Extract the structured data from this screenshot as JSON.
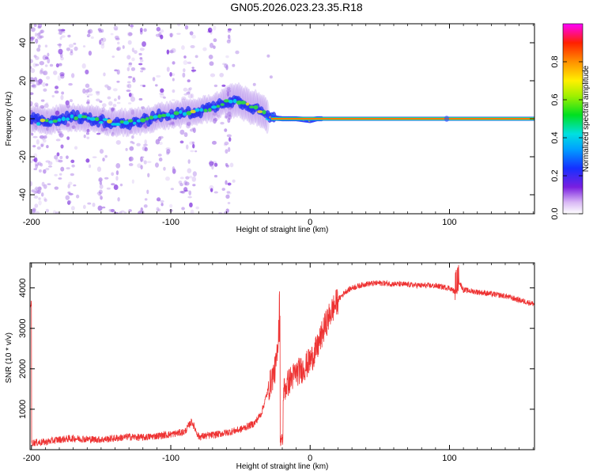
{
  "title": "GN05.2026.023.23.35.R18",
  "chart_data": [
    {
      "type": "heatmap",
      "name": "spectrogram",
      "xlabel": "Height of straight line (km)",
      "ylabel": "Frequency (Hz)",
      "xlim": [
        -201,
        161
      ],
      "ylim": [
        -50,
        50
      ],
      "xticks": [
        -200,
        -100,
        0,
        100
      ],
      "yticks": [
        -40,
        -20,
        0,
        20,
        40
      ],
      "ridge": [
        {
          "x": -195,
          "y": -2
        },
        {
          "x": -180,
          "y": 0
        },
        {
          "x": -170,
          "y": 1
        },
        {
          "x": -160,
          "y": 0
        },
        {
          "x": -150,
          "y": -1
        },
        {
          "x": -140,
          "y": -2
        },
        {
          "x": -130,
          "y": -2
        },
        {
          "x": -120,
          "y": -1
        },
        {
          "x": -110,
          "y": 1
        },
        {
          "x": -100,
          "y": 2
        },
        {
          "x": -90,
          "y": 3
        },
        {
          "x": -80,
          "y": 4
        },
        {
          "x": -70,
          "y": 6
        },
        {
          "x": -60,
          "y": 9
        },
        {
          "x": -55,
          "y": 10
        },
        {
          "x": -50,
          "y": 9
        },
        {
          "x": -45,
          "y": 7
        },
        {
          "x": -40,
          "y": 6
        },
        {
          "x": -35,
          "y": 4
        },
        {
          "x": -30,
          "y": 1
        },
        {
          "x": -20,
          "y": 0
        },
        {
          "x": -10,
          "y": 0
        },
        {
          "x": 0,
          "y": -1
        },
        {
          "x": 5,
          "y": 0
        },
        {
          "x": 161,
          "y": 0
        }
      ]
    },
    {
      "type": "line",
      "name": "snr",
      "xlabel": "Height of straight line (km)",
      "ylabel": "SNR (10 * v/v)",
      "xlim": [
        -201,
        161
      ],
      "ylim": [
        0,
        4620
      ],
      "xticks": [
        -200,
        -100,
        0,
        100
      ],
      "yticks": [
        1000,
        2000,
        3000,
        4000
      ],
      "series": [
        {
          "name": "SNR",
          "color": "#ee3333",
          "x": [
            -200,
            -190,
            -180,
            -170,
            -160,
            -150,
            -140,
            -130,
            -120,
            -110,
            -100,
            -90,
            -85,
            -83,
            -80,
            -70,
            -60,
            -50,
            -40,
            -35,
            -30,
            -25,
            -22,
            -20,
            -15,
            -10,
            -5,
            0,
            5,
            10,
            15,
            20,
            25,
            30,
            35,
            40,
            50,
            60,
            70,
            80,
            90,
            100,
            104,
            107,
            110,
            120,
            130,
            140,
            150,
            161
          ],
          "values": [
            170,
            190,
            250,
            280,
            260,
            250,
            280,
            320,
            300,
            340,
            380,
            440,
            700,
            550,
            320,
            360,
            420,
            500,
            650,
            900,
            1500,
            2000,
            2700,
            1400,
            1700,
            1900,
            2000,
            2200,
            2500,
            3000,
            3400,
            3700,
            3900,
            4000,
            4050,
            4100,
            4120,
            4100,
            4080,
            4060,
            4050,
            4000,
            3900,
            4150,
            3950,
            3900,
            3850,
            3800,
            3700,
            3600
          ]
        }
      ]
    },
    {
      "type": "colorbar",
      "name": "amplitude-colorbar",
      "label": "Normalized spectral amplitude",
      "range": [
        0,
        1
      ],
      "ticks": [
        "0.0",
        "0.2",
        "0.4",
        "0.6",
        "0.8"
      ],
      "tick_values": [
        0,
        0.2,
        0.4,
        0.6,
        0.8
      ]
    }
  ]
}
